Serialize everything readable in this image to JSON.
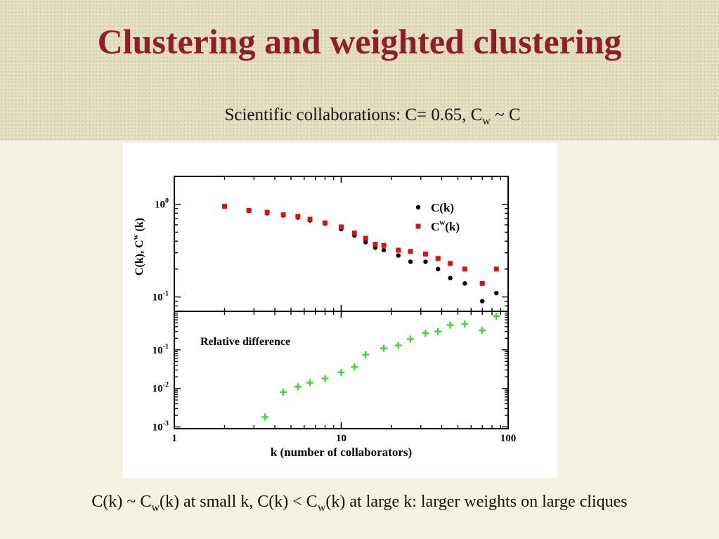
{
  "slide": {
    "title": "Clustering and weighted clustering",
    "subtitle_pre": "Scientific collaborations: C= 0.65, C",
    "subtitle_sub": "w",
    "subtitle_post": " ~ C",
    "caption_part1": "C(k) ~ C",
    "caption_sub1": "w",
    "caption_part2": "(k) at small k, C(k) < C",
    "caption_sub2": "w",
    "caption_part3": "(k) at large k: larger weights on large cliques"
  },
  "chart_data": [
    {
      "type": "scatter",
      "panel": "top",
      "xscale": "log",
      "yscale": "log",
      "xlim": [
        1,
        100
      ],
      "ylim": [
        0.07,
        2.0
      ],
      "ylabel": "C(k), C",
      "ylabel_sup": "w",
      "ylabel_tail": " (k)",
      "yticks": [
        {
          "value": 1,
          "base": "10",
          "exp": "0"
        },
        {
          "value": 0.1,
          "base": "10",
          "exp": "-1"
        }
      ],
      "legend_position": "top-right",
      "series": [
        {
          "name": "C(k)",
          "color": "#000000",
          "marker": "circle",
          "x": [
            2,
            2.8,
            3.6,
            4.5,
            5.5,
            6.5,
            8,
            10,
            12,
            14,
            16,
            18,
            22,
            26,
            32,
            38,
            45,
            55,
            70,
            85
          ],
          "y": [
            0.95,
            0.85,
            0.8,
            0.76,
            0.72,
            0.67,
            0.62,
            0.54,
            0.46,
            0.39,
            0.34,
            0.32,
            0.28,
            0.24,
            0.24,
            0.2,
            0.16,
            0.14,
            0.09,
            0.11
          ]
        },
        {
          "name": "C",
          "name_sup": "w",
          "name_tail": "(k)",
          "color": "#dd1111",
          "marker": "square",
          "x": [
            2,
            2.8,
            3.6,
            4.5,
            5.5,
            6.5,
            8,
            10,
            12,
            14,
            16,
            18,
            22,
            26,
            32,
            38,
            45,
            55,
            70,
            85
          ],
          "y": [
            0.95,
            0.86,
            0.82,
            0.77,
            0.74,
            0.69,
            0.63,
            0.57,
            0.49,
            0.43,
            0.37,
            0.36,
            0.32,
            0.31,
            0.29,
            0.26,
            0.23,
            0.2,
            0.14,
            0.2
          ]
        }
      ]
    },
    {
      "type": "scatter",
      "panel": "bottom",
      "xscale": "log",
      "yscale": "log",
      "xlim": [
        1,
        100
      ],
      "ylim": [
        0.0009,
        1.0
      ],
      "xlabel": "k (number of collaborators)",
      "xticks": [
        {
          "value": 1,
          "label": "1"
        },
        {
          "value": 10,
          "label": "10"
        },
        {
          "value": 100,
          "label": "100"
        }
      ],
      "yticks": [
        {
          "value": 0.1,
          "base": "10",
          "exp": "-1"
        },
        {
          "value": 0.01,
          "base": "10",
          "exp": "-2"
        },
        {
          "value": 0.001,
          "base": "10",
          "exp": "-3"
        }
      ],
      "annotation": "Relative difference",
      "series": [
        {
          "color": "#33dd33",
          "marker": "plus",
          "x": [
            3.5,
            4.5,
            5.5,
            6.5,
            8,
            10,
            12,
            14,
            18,
            22,
            26,
            32,
            38,
            45,
            55,
            70,
            85
          ],
          "y": [
            0.0018,
            0.008,
            0.011,
            0.014,
            0.018,
            0.026,
            0.036,
            0.075,
            0.11,
            0.13,
            0.19,
            0.27,
            0.3,
            0.44,
            0.47,
            0.32,
            0.75
          ]
        }
      ]
    }
  ]
}
